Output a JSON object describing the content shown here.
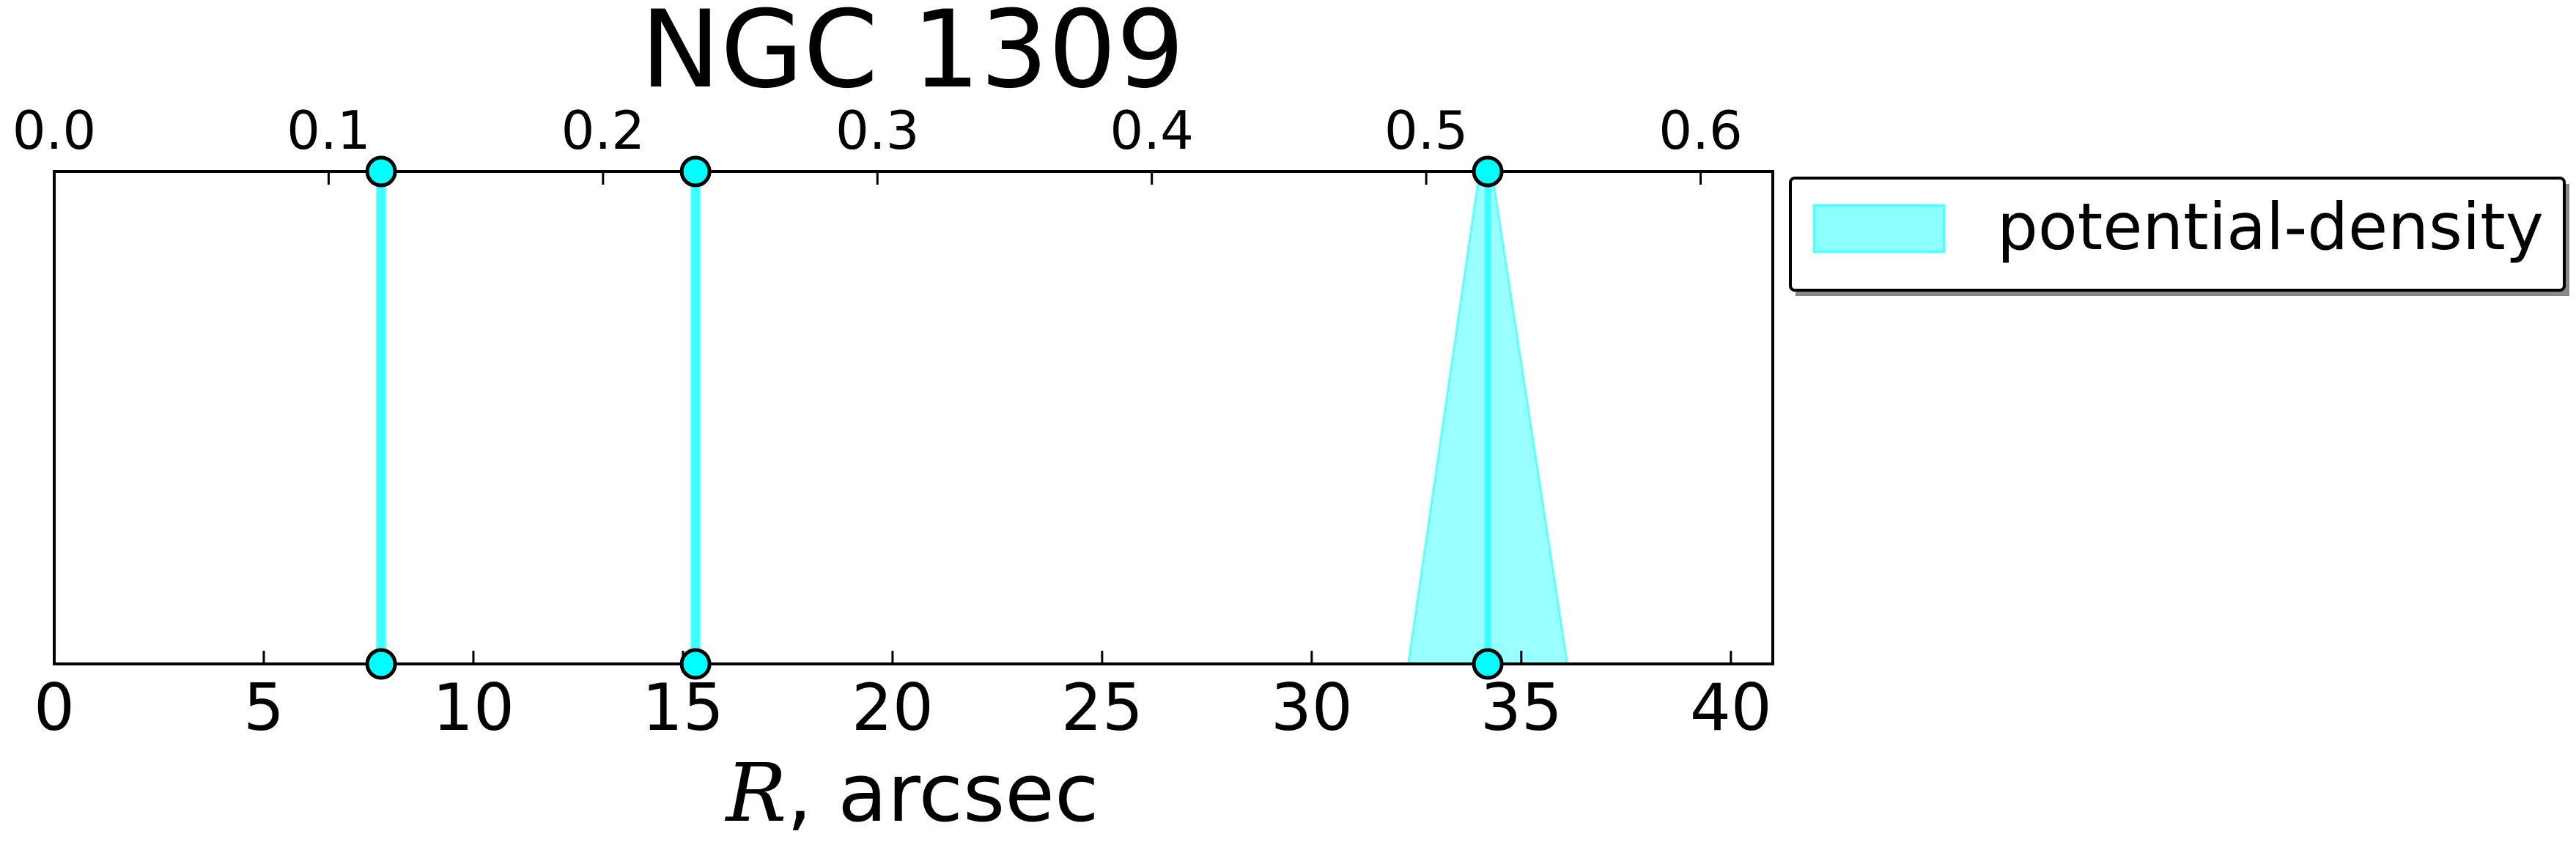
{
  "chart_data": {
    "type": "line",
    "title": "NGC 1309",
    "xlabel_var": "R",
    "xlabel_rest": ", arcsec",
    "xlim": [
      0,
      41
    ],
    "xticks": [
      0,
      5,
      10,
      15,
      20,
      25,
      30,
      35,
      40
    ],
    "top_axis": {
      "lim": [
        0,
        0.6263
      ],
      "ticks": [
        0.0,
        0.1,
        0.2,
        0.3,
        0.4,
        0.5,
        0.6
      ],
      "tick_labels": [
        "0.0",
        "0.1",
        "0.2",
        "0.3",
        "0.4",
        "0.5",
        "0.6"
      ]
    },
    "grid": false,
    "legend": {
      "placement": "outside-right-top",
      "entries": [
        "potential-density"
      ]
    },
    "series": [
      {
        "name": "potential-density",
        "color": "#00FFFF",
        "marker_edge_color": "#000000",
        "markers_bottom": [
          7.8,
          15.3,
          34.2
        ],
        "markers_top": [
          7.8,
          15.3,
          34.2
        ],
        "bands": [
          {
            "bottom": [
              7.7,
              7.9
            ],
            "top": [
              7.7,
              7.9
            ]
          },
          {
            "bottom": [
              15.2,
              15.4
            ],
            "top": [
              15.2,
              15.4
            ]
          },
          {
            "bottom": [
              32.3,
              36.1
            ],
            "top": [
              34.0,
              34.3
            ]
          }
        ]
      }
    ]
  }
}
